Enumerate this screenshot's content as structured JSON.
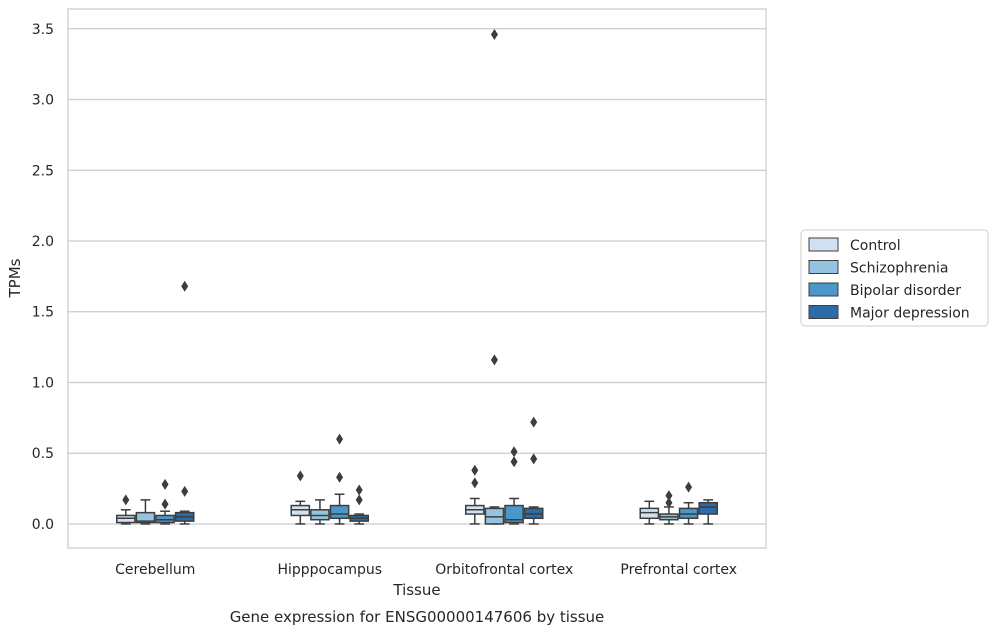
{
  "caption": "Gene expression for ENSG00000147606 by tissue",
  "chart_data": {
    "type": "box",
    "xlabel": "Tissue",
    "ylabel": "TPMs",
    "ylim": [
      -0.17,
      3.64
    ],
    "yticks": [
      "0.0",
      "0.5",
      "1.0",
      "1.5",
      "2.0",
      "2.5",
      "3.0",
      "3.5"
    ],
    "grid": "horizontal",
    "legend_position": "right",
    "categories": [
      "Cerebellum",
      "Hipppocampus",
      "Orbitofrontal cortex",
      "Prefrontal cortex"
    ],
    "series": [
      {
        "name": "Control",
        "color": "#d0e1f2",
        "boxes": [
          {
            "whisker_low": 0.0,
            "q1": 0.01,
            "median": 0.04,
            "q3": 0.06,
            "whisker_high": 0.1,
            "outliers": [
              0.17
            ]
          },
          {
            "whisker_low": 0.0,
            "q1": 0.06,
            "median": 0.1,
            "q3": 0.13,
            "whisker_high": 0.16,
            "outliers": [
              0.34
            ]
          },
          {
            "whisker_low": 0.0,
            "q1": 0.07,
            "median": 0.1,
            "q3": 0.13,
            "whisker_high": 0.18,
            "outliers": [
              0.29,
              0.38
            ]
          },
          {
            "whisker_low": 0.0,
            "q1": 0.04,
            "median": 0.08,
            "q3": 0.11,
            "whisker_high": 0.16,
            "outliers": []
          }
        ]
      },
      {
        "name": "Schizophrenia",
        "color": "#94c4df",
        "boxes": [
          {
            "whisker_low": 0.0,
            "q1": 0.01,
            "median": 0.02,
            "q3": 0.08,
            "whisker_high": 0.17,
            "outliers": []
          },
          {
            "whisker_low": 0.0,
            "q1": 0.03,
            "median": 0.06,
            "q3": 0.1,
            "whisker_high": 0.17,
            "outliers": []
          },
          {
            "whisker_low": 0.0,
            "q1": 0.0,
            "median": 0.05,
            "q3": 0.11,
            "whisker_high": 0.12,
            "outliers": [
              3.46,
              1.16
            ]
          },
          {
            "whisker_low": 0.0,
            "q1": 0.03,
            "median": 0.05,
            "q3": 0.07,
            "whisker_high": 0.12,
            "outliers": [
              0.2,
              0.15
            ]
          }
        ]
      },
      {
        "name": "Bipolar disorder",
        "color": "#4a98c9",
        "boxes": [
          {
            "whisker_low": 0.0,
            "q1": 0.01,
            "median": 0.03,
            "q3": 0.06,
            "whisker_high": 0.09,
            "outliers": [
              0.28,
              0.14
            ]
          },
          {
            "whisker_low": 0.0,
            "q1": 0.04,
            "median": 0.07,
            "q3": 0.13,
            "whisker_high": 0.21,
            "outliers": [
              0.6,
              0.33
            ]
          },
          {
            "whisker_low": 0.0,
            "q1": 0.01,
            "median": 0.03,
            "q3": 0.13,
            "whisker_high": 0.18,
            "outliers": [
              0.51,
              0.44
            ]
          },
          {
            "whisker_low": 0.0,
            "q1": 0.04,
            "median": 0.07,
            "q3": 0.11,
            "whisker_high": 0.15,
            "outliers": [
              0.26
            ]
          }
        ]
      },
      {
        "name": "Major depression",
        "color": "#2c6ba8",
        "boxes": [
          {
            "whisker_low": 0.0,
            "q1": 0.02,
            "median": 0.05,
            "q3": 0.08,
            "whisker_high": 0.09,
            "outliers": [
              1.68,
              0.23
            ]
          },
          {
            "whisker_low": 0.0,
            "q1": 0.02,
            "median": 0.04,
            "q3": 0.06,
            "whisker_high": 0.07,
            "outliers": [
              0.24,
              0.17
            ]
          },
          {
            "whisker_low": 0.0,
            "q1": 0.04,
            "median": 0.07,
            "q3": 0.11,
            "whisker_high": 0.12,
            "outliers": [
              0.72,
              0.46
            ]
          },
          {
            "whisker_low": 0.0,
            "q1": 0.07,
            "median": 0.12,
            "q3": 0.15,
            "whisker_high": 0.17,
            "outliers": []
          }
        ]
      }
    ]
  }
}
